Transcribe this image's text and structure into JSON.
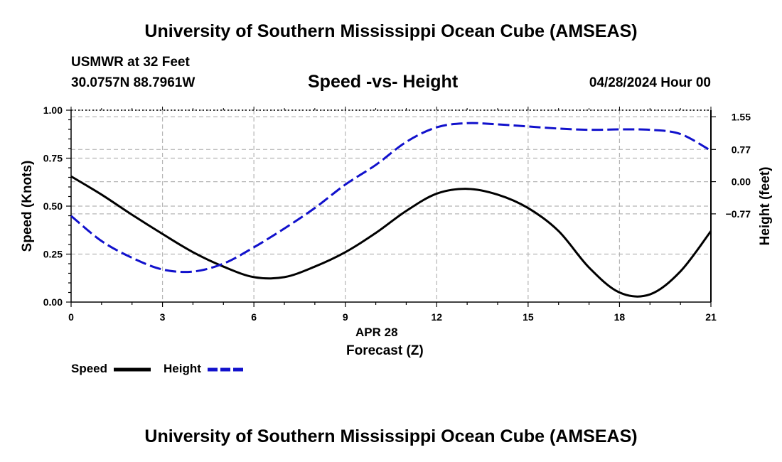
{
  "header": {
    "main_title": "University of Southern Mississippi Ocean Cube (AMSEAS)",
    "station": "USMWR at 32 Feet",
    "coords": "30.0757N  88.7961W",
    "plot_title": "Speed -vs- Height",
    "datetime": "04/28/2024 Hour 00"
  },
  "footer": {
    "title": "University of Southern Mississippi Ocean Cube (AMSEAS)"
  },
  "chart_data": {
    "type": "line",
    "title": "Speed -vs- Height",
    "xlabel_date": "APR 28",
    "xlabel": "Forecast (Z)",
    "ylabel": "Speed (Knots)",
    "ylabel_right": "Height (feet)",
    "xlim": [
      0,
      21
    ],
    "x_ticks": [
      0,
      3,
      6,
      9,
      12,
      15,
      18,
      21
    ],
    "x_tick_labels": [
      "0",
      "3",
      "6",
      "9",
      "12",
      "15",
      "18",
      "21"
    ],
    "ylim": [
      0,
      1.0
    ],
    "y_ticks": [
      0,
      0.25,
      0.5,
      0.75,
      1.0
    ],
    "y_tick_labels": [
      "0.00",
      "0.25",
      "0.50",
      "0.75",
      "1.00"
    ],
    "ylim_right": [
      -2.88,
      1.71
    ],
    "y_ticks_right": [
      -0.77,
      0.0,
      0.77,
      1.55
    ],
    "y_tick_labels_right": [
      "−0.77",
      "0.00",
      "0.77",
      "1.55"
    ],
    "grid": true,
    "series": [
      {
        "name": "Speed",
        "axis": "left",
        "color": "#000000",
        "style": "solid",
        "x": [
          0,
          1,
          2,
          3,
          4,
          5,
          6,
          7,
          8,
          9,
          10,
          11,
          12,
          13,
          14,
          15,
          16,
          17,
          18,
          19,
          20,
          21
        ],
        "values": [
          0.655,
          0.56,
          0.455,
          0.355,
          0.26,
          0.185,
          0.13,
          0.13,
          0.185,
          0.26,
          0.36,
          0.475,
          0.565,
          0.59,
          0.56,
          0.49,
          0.37,
          0.18,
          0.05,
          0.04,
          0.16,
          0.37
        ]
      },
      {
        "name": "Height",
        "axis": "right",
        "color": "#1111cc",
        "style": "dashed",
        "x": [
          0,
          1,
          2,
          3,
          4,
          5,
          6,
          7,
          8,
          9,
          10,
          11,
          12,
          13,
          14,
          15,
          16,
          17,
          18,
          19,
          20,
          21
        ],
        "values": [
          -0.82,
          -1.42,
          -1.82,
          -2.1,
          -2.15,
          -1.96,
          -1.57,
          -1.12,
          -0.63,
          -0.07,
          0.4,
          0.95,
          1.3,
          1.4,
          1.37,
          1.32,
          1.27,
          1.24,
          1.25,
          1.24,
          1.14,
          0.74
        ]
      }
    ]
  },
  "legend": {
    "speed_label": "Speed",
    "height_label": "Height",
    "speed_color": "#000000",
    "height_color": "#1111cc"
  }
}
